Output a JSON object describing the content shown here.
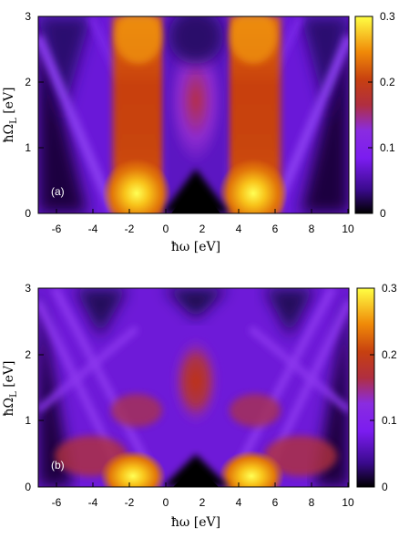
{
  "chart_data": [
    {
      "type": "heatmap",
      "panel_label": "(a)",
      "xlabel": "ħω [eV]",
      "ylabel": "ħΩ_L [eV]",
      "ylabel_main": "ħΩ",
      "ylabel_sub": "L",
      "ylabel_unit": " [eV]",
      "xlim": [
        -7,
        10
      ],
      "ylim": [
        0,
        3
      ],
      "x_ticks": [
        "-6",
        "-4",
        "-2",
        "0",
        "2",
        "4",
        "6",
        "8",
        "10"
      ],
      "y_ticks": [
        "0",
        "1",
        "2",
        "3"
      ],
      "colorbar": {
        "range": [
          0,
          0.3
        ],
        "ticks": [
          "0",
          "0.1",
          "0.2",
          "0.3"
        ]
      },
      "colormap": [
        "#000000",
        "#3a0a8c",
        "#7b1cf0",
        "#8c2ad6",
        "#b5303a",
        "#d95a05",
        "#f7a10a",
        "#ffff44"
      ],
      "features": {
        "hotspots": [
          {
            "x": -1.5,
            "y": 0.3,
            "value": 0.3
          },
          {
            "x": 4.8,
            "y": 0.3,
            "value": 0.3
          }
        ],
        "dark_regions": [
          {
            "x": 1.6,
            "y": 0.0,
            "value": 0.0
          }
        ]
      }
    },
    {
      "type": "heatmap",
      "panel_label": "(b)",
      "xlabel": "ħω [eV]",
      "ylabel": "ħΩ_L [eV]",
      "ylabel_main": "ħΩ",
      "ylabel_sub": "L",
      "ylabel_unit": " [eV]",
      "xlim": [
        -7,
        10
      ],
      "ylim": [
        0,
        3
      ],
      "x_ticks": [
        "-6",
        "-4",
        "-2",
        "0",
        "2",
        "4",
        "6",
        "8",
        "10"
      ],
      "y_ticks": [
        "0",
        "1",
        "2",
        "3"
      ],
      "colorbar": {
        "range": [
          0,
          0.3
        ],
        "ticks": [
          "0",
          "0.1",
          "0.2",
          "0.3"
        ]
      },
      "colormap": [
        "#000000",
        "#3a0a8c",
        "#7b1cf0",
        "#8c2ad6",
        "#b5303a",
        "#d95a05",
        "#f7a10a",
        "#ffff44"
      ],
      "features": {
        "hotspots": [
          {
            "x": -1.5,
            "y": 0.1,
            "value": 0.3
          },
          {
            "x": 4.8,
            "y": 0.1,
            "value": 0.3
          }
        ],
        "dark_regions": [
          {
            "x": 1.6,
            "y": 0.0,
            "value": 0.0
          }
        ]
      }
    }
  ]
}
